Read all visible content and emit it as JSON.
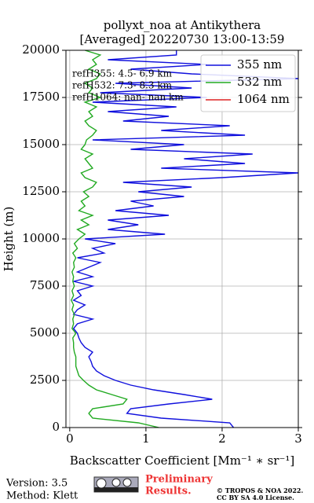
{
  "chart_data": {
    "type": "line",
    "title": "pollyxt_noa at Antikythera",
    "subtitle": "[Averaged] 20220730 13:00-13:59",
    "xlabel": "Backscatter Coefficient [Mm⁻¹ ∗ sr⁻¹]",
    "ylabel": "Height (m)",
    "xlim": [
      -0.05,
      3
    ],
    "xticks": [
      0,
      1,
      2,
      3
    ],
    "ylim": [
      0,
      20000
    ],
    "yticks": [
      0,
      2500,
      5000,
      7500,
      10000,
      12500,
      15000,
      17500,
      20000
    ],
    "grid": true,
    "legend": "upper right",
    "heights": [
      0,
      250,
      500,
      750,
      1000,
      1250,
      1500,
      1750,
      2000,
      2250,
      2500,
      2750,
      3000,
      3250,
      3500,
      3750,
      4000,
      4250,
      4500,
      4750,
      5000,
      5250,
      5500,
      5750,
      6000,
      6250,
      6500,
      6750,
      7000,
      7250,
      7500,
      7750,
      8000,
      8250,
      8500,
      8750,
      9000,
      9250,
      9500,
      9750,
      10000,
      10250,
      10500,
      10750,
      11000,
      11250,
      11500,
      11750,
      12000,
      12250,
      12500,
      12750,
      13000,
      13250,
      13500,
      13750,
      14000,
      14250,
      14500,
      14750,
      15000,
      15250,
      15500,
      15750,
      16000,
      16250,
      16500,
      16750,
      17000,
      17250,
      17500,
      17750,
      18000,
      18250,
      18500,
      18750,
      19000,
      19250,
      19500,
      19750,
      20000
    ],
    "series": [
      {
        "name": "355 nm",
        "color": "#1010dd",
        "values": [
          2.15,
          2.1,
          1.2,
          0.75,
          0.8,
          1.3,
          1.87,
          1.5,
          1.1,
          0.8,
          0.6,
          0.45,
          0.35,
          0.3,
          0.28,
          0.25,
          0.3,
          0.2,
          0.15,
          0.12,
          0.1,
          0.05,
          0.1,
          0.3,
          0.05,
          0.1,
          0.2,
          0.05,
          0.15,
          0.1,
          0.3,
          0.05,
          0.3,
          0.1,
          0.25,
          0.4,
          0.1,
          0.45,
          0.3,
          0.6,
          0.2,
          1.25,
          0.5,
          0.9,
          0.5,
          1.3,
          0.6,
          1.1,
          0.8,
          1.5,
          0.9,
          1.6,
          0.7,
          2.0,
          3.0,
          1.2,
          2.3,
          1.5,
          2.4,
          0.8,
          1.5,
          0.3,
          2.3,
          1.2,
          2.1,
          0.7,
          1.3,
          0.5,
          1.4,
          0.3,
          1.8,
          0.4,
          1.6,
          0.6,
          3.0,
          1.6,
          0.8,
          1.8,
          0.5,
          1.4,
          1.4
        ]
      },
      {
        "name": "532 nm",
        "color": "#22aa22",
        "values": [
          1.17,
          0.9,
          0.3,
          0.25,
          0.3,
          0.7,
          0.75,
          0.55,
          0.35,
          0.25,
          0.18,
          0.12,
          0.1,
          0.08,
          0.08,
          0.08,
          0.06,
          0.05,
          0.05,
          0.04,
          0.08,
          0.03,
          0.05,
          0.04,
          0.06,
          0.03,
          0.05,
          0.02,
          0.05,
          0.03,
          0.06,
          0.04,
          0.05,
          0.03,
          0.06,
          0.05,
          0.08,
          0.04,
          0.1,
          0.06,
          0.12,
          0.2,
          0.1,
          0.25,
          0.15,
          0.3,
          0.12,
          0.2,
          0.15,
          0.25,
          0.18,
          0.3,
          0.35,
          0.2,
          0.15,
          0.3,
          0.25,
          0.2,
          0.3,
          0.15,
          0.2,
          0.22,
          0.3,
          0.35,
          0.25,
          0.2,
          0.3,
          0.25,
          0.35,
          0.2,
          0.4,
          0.25,
          0.3,
          0.2,
          0.35,
          0.4,
          0.25,
          0.35,
          0.3,
          0.4,
          0.2
        ]
      },
      {
        "name": "1064 nm",
        "color": "#dd2222",
        "values": [
          null,
          null,
          null,
          null,
          null,
          null,
          null,
          null,
          null,
          null,
          null,
          null,
          null,
          null,
          null,
          null,
          null,
          null,
          null,
          null,
          null,
          null,
          null,
          null,
          null,
          null,
          null,
          null,
          null,
          null,
          null,
          null,
          null,
          null,
          null,
          null,
          null,
          null,
          null,
          null,
          null,
          null,
          null,
          null,
          null,
          null,
          null,
          null,
          null,
          null,
          null,
          null,
          null,
          null,
          null,
          null,
          null,
          null,
          null,
          null,
          null,
          null,
          null,
          null,
          null,
          null,
          null,
          null,
          null,
          null,
          null,
          null,
          null,
          null,
          null,
          null,
          null,
          null,
          null,
          null,
          null
        ]
      }
    ],
    "annotations": [
      "refH355:  4.5- 6.9 km",
      "refH532:  7.3- 8.3 km",
      "refH1064:  nan- nan km"
    ]
  },
  "footer": {
    "version": "Version: 3.5",
    "method": "Method: Klett",
    "notice": [
      "Preliminary",
      "Results."
    ],
    "copyright": [
      "© TROPOS & NOA 2022.",
      "CC BY SA 4.0 License."
    ]
  }
}
